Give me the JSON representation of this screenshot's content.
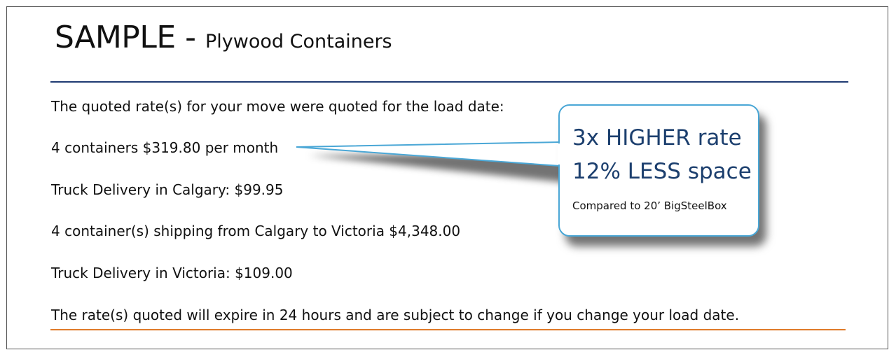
{
  "document": {
    "title_main": "SAMPLE - ",
    "title_sub": "Plywood Containers",
    "lines": [
      "The quoted rate(s) for your move were quoted for the load date:",
      "4 containers $319.80 per month",
      "Truck Delivery in Calgary: $99.95",
      "4 container(s) shipping from Calgary to Victoria $4,348.00",
      "Truck Delivery in Victoria: $109.00",
      "The rate(s) quoted will expire in 24 hours and are subject to change if you change your load date."
    ]
  },
  "callout": {
    "line1": "3x HIGHER rate",
    "line2": "12% LESS space",
    "note": "Compared to 20’ BigSteelBox"
  },
  "colors": {
    "title_rule": "#1f3b73",
    "footer_rule": "#e07b2a",
    "callout_border": "#4aa7d6",
    "callout_text": "#1c3f6e"
  }
}
